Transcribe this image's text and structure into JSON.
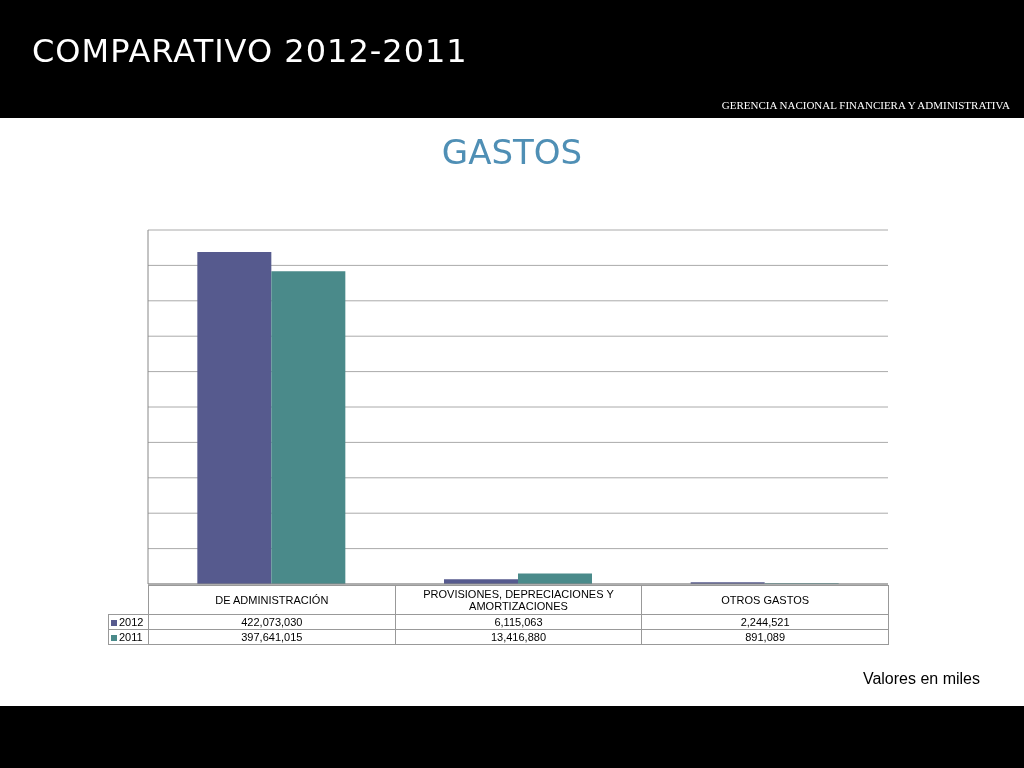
{
  "chart_data": {
    "type": "bar",
    "title": "COMPARATIVO 2012-2011",
    "subtitle": "GASTOS",
    "annotations": [
      "GERENCIA NACIONAL FINANCIERA Y ADMINISTRATIVA",
      "Valores en miles"
    ],
    "categories": [
      "DE ADMINISTRACIÓN",
      "PROVISIONES, DEPRECIACIONES Y AMORTIZACIONES",
      "OTROS GASTOS"
    ],
    "series": [
      {
        "name": "2012",
        "color": "#565a8e",
        "values": [
          422073030,
          6115063,
          2244521
        ],
        "value_labels": [
          "422,073,030",
          "6,115,063",
          "2,244,521"
        ]
      },
      {
        "name": "2011",
        "color": "#4a8a8a",
        "values": [
          397641015,
          13416880,
          891089
        ],
        "value_labels": [
          "397,641,015",
          "13,416,880",
          "891,089"
        ]
      }
    ],
    "grid": "y",
    "tick_labels": "x",
    "legend": "bottom"
  }
}
